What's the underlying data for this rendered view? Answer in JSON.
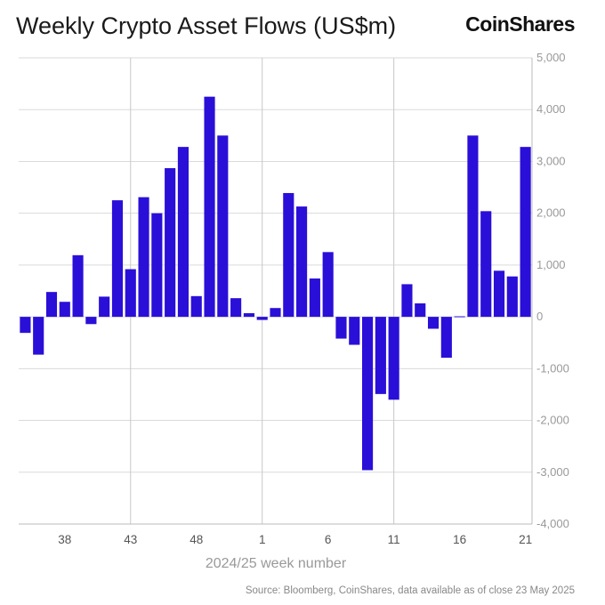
{
  "brand": "CoinShares",
  "source": "Source: Bloomberg, CoinShares, data available as of close 23 May 2025",
  "chart_data": {
    "type": "bar",
    "title": "Weekly Crypto Asset Flows (US$m)",
    "xlabel": "2024/25 week number",
    "ylabel": "",
    "ylim": [
      -4000,
      5000
    ],
    "yticks": [
      5000,
      4000,
      3000,
      2000,
      1000,
      0,
      -1000,
      -2000,
      -3000,
      -4000
    ],
    "ytick_labels": [
      "5,000",
      "4,000",
      "3,000",
      "2,000",
      "1,000",
      "0",
      "-1,000",
      "-2,000",
      "-3,000",
      "-4,000"
    ],
    "xtick_labels": [
      "38",
      "43",
      "48",
      "1",
      "6",
      "11",
      "16",
      "21"
    ],
    "xtick_index": [
      3,
      8,
      13,
      18,
      23,
      28,
      33,
      38
    ],
    "grid_index": [
      8,
      18,
      28
    ],
    "grid": true,
    "bar_color": "#2a0fd8",
    "categories": [
      "35",
      "36",
      "37",
      "38",
      "39",
      "40",
      "41",
      "42",
      "43",
      "44",
      "45",
      "46",
      "47",
      "48",
      "49",
      "50",
      "51",
      "52",
      "1",
      "2",
      "3",
      "4",
      "5",
      "6",
      "7",
      "8",
      "9",
      "10",
      "11",
      "12",
      "13",
      "14",
      "15",
      "16",
      "17",
      "18",
      "19",
      "20",
      "21"
    ],
    "values": [
      -310,
      -730,
      480,
      290,
      1190,
      -140,
      390,
      2250,
      920,
      2310,
      2000,
      2870,
      3280,
      400,
      4250,
      3500,
      360,
      70,
      -60,
      170,
      2390,
      2130,
      740,
      1250,
      -420,
      -540,
      -2960,
      -1490,
      -1600,
      630,
      260,
      -230,
      -790,
      10,
      3500,
      2040,
      890,
      780,
      3280
    ]
  }
}
